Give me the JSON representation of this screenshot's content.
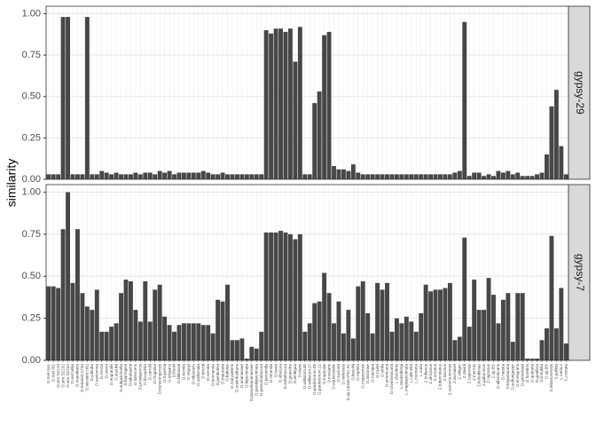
{
  "chart_data": {
    "type": "bar",
    "y_label": "similarity",
    "grid": true,
    "ylim": [
      0,
      1.045
    ],
    "yticks": [
      {
        "value": 0,
        "label": "0.00"
      },
      {
        "value": 0.25,
        "label": "0.25"
      },
      {
        "value": 0.5,
        "label": "0.50"
      },
      {
        "value": 0.75,
        "label": "0.75"
      },
      {
        "value": 1,
        "label": "1.00"
      }
    ],
    "categories": [
      "D.mel.Iso1",
      "D.mel.Pi2",
      "D.sim.SZ129",
      "D.sim.SZ232",
      "D.sim.SZ244",
      "D.sechellia",
      "D.mauritiana",
      "D.teissieri.2733",
      "D.teissieri.ct02",
      "D.yakuba",
      "D.santomea",
      "D.erecta",
      "D.orena",
      "D.eugracilis",
      "D.suzukii",
      "D.subpulchrella",
      "D.biarmipes",
      "D.takahashii",
      "D.lutescens",
      "D.prostipennis",
      "D.ficusphila",
      "D.carrolli",
      "D.rhopaloa",
      "D.kurseongensis",
      "D.fuyamai",
      "D.elegans",
      "D.bocki",
      "D.kikkawai",
      "D.leontia",
      "D.seguyi",
      "D.nikananu",
      "D.vallismaia",
      "D.birchii",
      "D.serrata",
      "D.bunnanda",
      "D.jambulina",
      "D.triauraria",
      "D.bakoue",
      "D.mal.pallens",
      "D.malerkotliana",
      "D.ananassae",
      "D.bipectinata",
      "D.pseudoananassae",
      "D.parabipectinata",
      "D.pseudoobscura",
      "D.persimilis",
      "D.miranda",
      "D.lowei",
      "D.obscura",
      "D.subobscura",
      "D.guanche",
      "D.ambigua",
      "D.tristis",
      "D.willistoni.00",
      "D.willistoni.17",
      "D.paulistorum.06",
      "D.paulistorum.12",
      "D.tropicalis",
      "D.insularis",
      "D.equinoxialis",
      "D.sucinea",
      "D.nebulosa",
      "D.sp.14030.0761.01",
      "D.busckii",
      "D.repleta",
      "D.mojavensis",
      "D.arizonae",
      "D.navojoa",
      "D.hydei",
      "D.virilis",
      "D.americana",
      "D.novamexicana",
      "L.clarofinis",
      "L.stackelbergi",
      "L.magnipectinata",
      "L.collinella",
      "L.montana",
      "L.varia",
      "Z.indianus",
      "Z.africanus",
      "Z.ornatus",
      "Z.tuberculatus",
      "Z.taronus",
      "Z.camerounensis",
      "Z.lachaisei",
      "Z.vittiger",
      "Z.davidi",
      "Z.capensis",
      "Z.inermis",
      "Z.kolodkinae",
      "Z.gabonicus",
      "Z.nigranus",
      "Z.sp.BS",
      "D.albomicans",
      "D.nasuta",
      "D.kepulauana",
      "D.sulfurigaster",
      "D.immigrans",
      "D.grimshawi",
      "D.funebris",
      "D.quinaria",
      "D.guttifera",
      "D.innubila",
      "D.sp.BS",
      "S.lebanonensis",
      "S.pallida",
      "L.varia.2",
      "C.costata"
    ],
    "series": [
      {
        "name": "gypsy-29",
        "color": "#474747",
        "values": [
          0.03,
          0.03,
          0.03,
          0.98,
          0.98,
          0.03,
          0.03,
          0.03,
          0.98,
          0.03,
          0.03,
          0.05,
          0.04,
          0.03,
          0.04,
          0.03,
          0.03,
          0.03,
          0.04,
          0.03,
          0.04,
          0.04,
          0.03,
          0.05,
          0.04,
          0.05,
          0.03,
          0.04,
          0.04,
          0.04,
          0.04,
          0.04,
          0.05,
          0.04,
          0.03,
          0.03,
          0.04,
          0.03,
          0.03,
          0.03,
          0.03,
          0.03,
          0.03,
          0.03,
          0.03,
          0.9,
          0.88,
          0.91,
          0.91,
          0.89,
          0.91,
          0.71,
          0.92,
          0.03,
          0.03,
          0.46,
          0.53,
          0.87,
          0.89,
          0.08,
          0.06,
          0.06,
          0.05,
          0.09,
          0.04,
          0.03,
          0.03,
          0.03,
          0.03,
          0.03,
          0.03,
          0.03,
          0.03,
          0.03,
          0.03,
          0.03,
          0.03,
          0.03,
          0.03,
          0.03,
          0.03,
          0.03,
          0.03,
          0.03,
          0.04,
          0.05,
          0.95,
          0.02,
          0.04,
          0.04,
          0.02,
          0.03,
          0.02,
          0.05,
          0.04,
          0.05,
          0.03,
          0.04,
          0.02,
          0.02,
          0.02,
          0.03,
          0.04,
          0.15,
          0.44,
          0.54,
          0.2,
          0.03
        ]
      },
      {
        "name": "gypsy-7",
        "color": "#474747",
        "values": [
          0.44,
          0.44,
          0.43,
          0.78,
          1.0,
          0.46,
          0.78,
          0.4,
          0.32,
          0.3,
          0.42,
          0.17,
          0.17,
          0.2,
          0.22,
          0.4,
          0.48,
          0.47,
          0.3,
          0.23,
          0.47,
          0.23,
          0.42,
          0.45,
          0.26,
          0.21,
          0.17,
          0.21,
          0.22,
          0.22,
          0.22,
          0.22,
          0.21,
          0.21,
          0.16,
          0.36,
          0.35,
          0.45,
          0.12,
          0.12,
          0.13,
          0.01,
          0.08,
          0.07,
          0.17,
          0.76,
          0.76,
          0.76,
          0.77,
          0.76,
          0.75,
          0.72,
          0.75,
          0.17,
          0.22,
          0.34,
          0.35,
          0.52,
          0.4,
          0.22,
          0.35,
          0.16,
          0.3,
          0.13,
          0.44,
          0.47,
          0.28,
          0.16,
          0.46,
          0.42,
          0.46,
          0.17,
          0.25,
          0.22,
          0.26,
          0.23,
          0.17,
          0.28,
          0.45,
          0.41,
          0.42,
          0.42,
          0.43,
          0.46,
          0.12,
          0.14,
          0.73,
          0.2,
          0.48,
          0.3,
          0.3,
          0.49,
          0.39,
          0.22,
          0.36,
          0.4,
          0.11,
          0.4,
          0.4,
          0.01,
          0.01,
          0.01,
          0.12,
          0.19,
          0.74,
          0.19,
          0.43,
          0.1
        ]
      }
    ]
  }
}
